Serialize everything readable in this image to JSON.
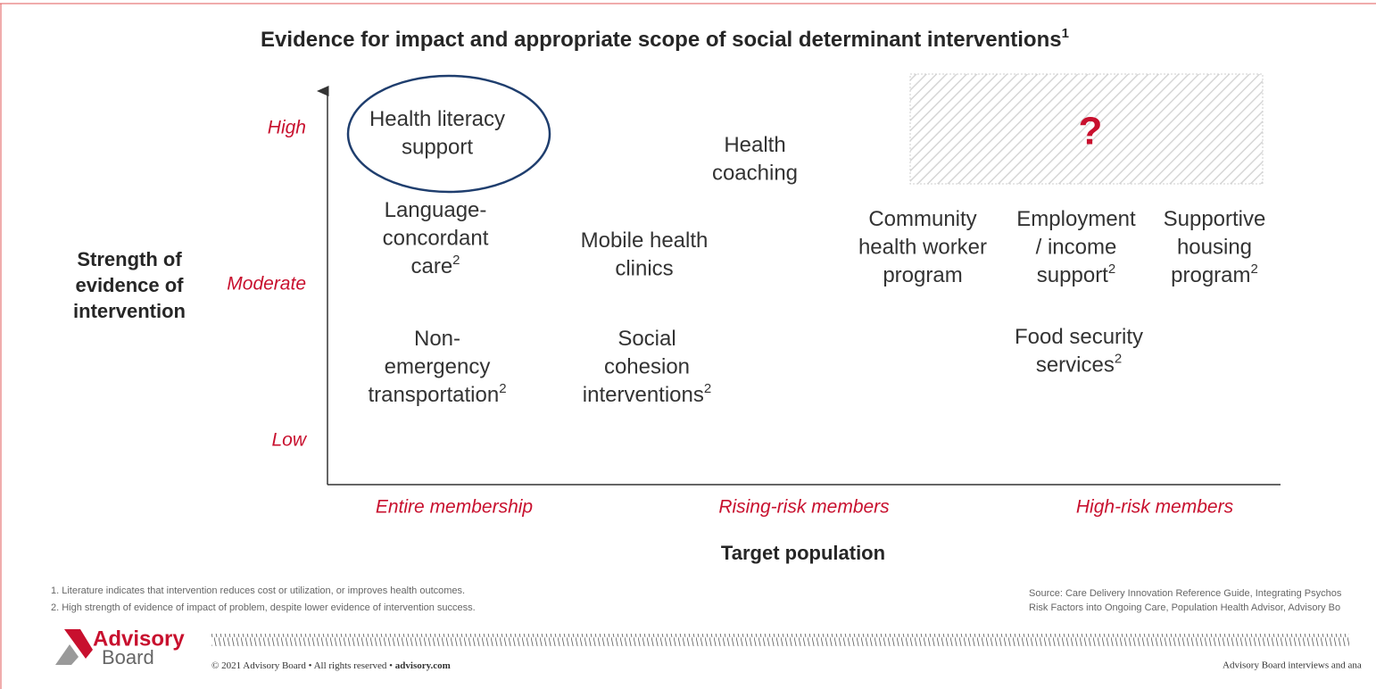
{
  "title": {
    "text": "Evidence for impact and appropriate scope of social determinant interventions",
    "sup": "1"
  },
  "y_axis": {
    "title_lines": [
      "Strength of",
      "evidence of",
      "intervention"
    ],
    "levels": [
      "High",
      "Moderate",
      "Low"
    ]
  },
  "x_axis": {
    "title": "Target population",
    "levels": [
      "Entire membership",
      "Rising-risk members",
      "High-risk members"
    ]
  },
  "items": [
    {
      "lines": [
        "Health literacy",
        "support"
      ],
      "highlighted": true
    },
    {
      "lines": [
        "Health",
        "coaching"
      ]
    },
    {
      "lines": [
        "Language-",
        "concordant",
        "care"
      ],
      "sup": "2"
    },
    {
      "lines": [
        "Mobile health",
        "clinics"
      ]
    },
    {
      "lines": [
        "Community",
        "health worker",
        "program"
      ]
    },
    {
      "lines": [
        "Employment",
        "/ income",
        "support"
      ],
      "sup": "2"
    },
    {
      "lines": [
        "Supportive",
        "housing",
        "program"
      ],
      "sup": "2"
    },
    {
      "lines": [
        "Non-",
        "emergency",
        "transportation"
      ],
      "sup": "2"
    },
    {
      "lines": [
        "Social",
        "cohesion",
        "interventions"
      ],
      "sup": "2"
    },
    {
      "lines": [
        "Food security",
        "services"
      ],
      "sup": "2"
    }
  ],
  "unknown_box": {
    "text": "?"
  },
  "footnotes": [
    "1. Literature indicates that intervention reduces cost or utilization, or improves health outcomes.",
    "2. High strength of evidence of impact of problem, despite lower evidence of intervention success."
  ],
  "source": [
    "Source: Care Delivery Innovation Reference Guide, Integrating Psychos",
    "Risk Factors into Ongoing Care, Population Health Advisor, Advisory Bo"
  ],
  "logo": [
    "Advisory",
    "Board"
  ],
  "copyright": {
    "text": "© 2021 Advisory Board • All rights reserved • ",
    "link": "advisory.com"
  },
  "footer_right": "Advisory Board interviews and ana"
}
